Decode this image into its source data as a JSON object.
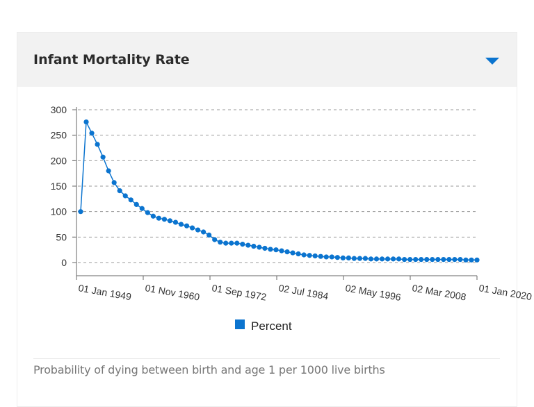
{
  "card": {
    "title": "Infant Mortality Rate",
    "toggle_icon": "triangle-down-icon",
    "caption": "Probability of dying between birth and age 1 per 1000 live births"
  },
  "colors": {
    "series": "#0B74CF",
    "toggle": "#0B74CF",
    "grid": "#9a9a9a"
  },
  "chart_data": {
    "type": "line",
    "title": "",
    "xlabel": "",
    "ylabel": "",
    "ylim": [
      0,
      300
    ],
    "yticks": [
      "0",
      "50",
      "100",
      "150",
      "200",
      "250",
      "300"
    ],
    "xticks": [
      "01 Jan 1949",
      "01 Nov 1960",
      "01 Sep 1972",
      "02 Jul 1984",
      "02 May 1996",
      "02 Mar 2008",
      "01 Jan 2020"
    ],
    "xlim": [
      "1949-01-01",
      "2020-01-01"
    ],
    "grid": true,
    "legend_position": "bottom",
    "series": [
      {
        "name": "Percent",
        "x": [
          "1949-01-01",
          "1950-01-01",
          "1951-01-01",
          "1952-01-01",
          "1953-01-01",
          "1954-01-01",
          "1955-01-01",
          "1956-01-01",
          "1957-01-01",
          "1958-01-01",
          "1959-01-01",
          "1960-01-01",
          "1961-01-01",
          "1962-01-01",
          "1963-01-01",
          "1964-01-01",
          "1965-01-01",
          "1966-01-01",
          "1967-01-01",
          "1968-01-01",
          "1969-01-01",
          "1970-01-01",
          "1971-01-01",
          "1972-01-01",
          "1973-01-01",
          "1974-01-01",
          "1975-01-01",
          "1976-01-01",
          "1977-01-01",
          "1978-01-01",
          "1979-01-01",
          "1980-01-01",
          "1981-01-01",
          "1982-01-01",
          "1983-01-01",
          "1984-01-01",
          "1985-01-01",
          "1986-01-01",
          "1987-01-01",
          "1988-01-01",
          "1989-01-01",
          "1990-01-01",
          "1991-01-01",
          "1992-01-01",
          "1993-01-01",
          "1994-01-01",
          "1995-01-01",
          "1996-01-01",
          "1997-01-01",
          "1998-01-01",
          "1999-01-01",
          "2000-01-01",
          "2001-01-01",
          "2002-01-01",
          "2003-01-01",
          "2004-01-01",
          "2005-01-01",
          "2006-01-01",
          "2007-01-01",
          "2008-01-01",
          "2009-01-01",
          "2010-01-01",
          "2011-01-01",
          "2012-01-01",
          "2013-01-01",
          "2014-01-01",
          "2015-01-01",
          "2016-01-01",
          "2017-01-01",
          "2018-01-01",
          "2019-01-01",
          "2020-01-01"
        ],
        "values": [
          100,
          276,
          254,
          232,
          207,
          180,
          157,
          141,
          131,
          123,
          114,
          106,
          98,
          91,
          87,
          85,
          82,
          79,
          75,
          72,
          68,
          64,
          60,
          54,
          45,
          40,
          38,
          38,
          38,
          36,
          34,
          32,
          30,
          28,
          26,
          25,
          23,
          21,
          19,
          17,
          15,
          14,
          13,
          12,
          11,
          11,
          10,
          9,
          9,
          8,
          8,
          8,
          7,
          7,
          7,
          7,
          7,
          7,
          6,
          6,
          6,
          6,
          6,
          6,
          6,
          6,
          6,
          6,
          6,
          5,
          5,
          5
        ]
      }
    ]
  }
}
